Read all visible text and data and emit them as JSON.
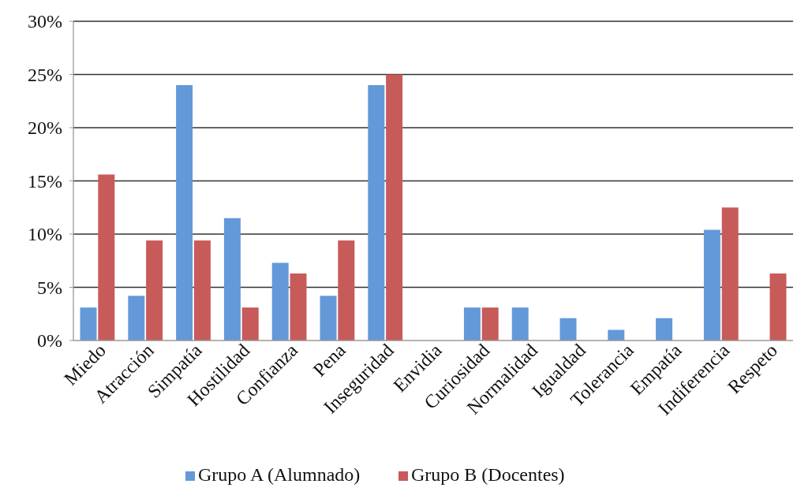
{
  "chart_data": {
    "type": "bar",
    "categories": [
      "Miedo",
      "Atracción",
      "Simpatía",
      "Hostilidad",
      "Confianza",
      "Pena",
      "Inseguridad",
      "Envidia",
      "Curiosidad",
      "Normalidad",
      "Igualdad",
      "Tolerancia",
      "Empatía",
      "Indiferencia",
      "Respeto"
    ],
    "series": [
      {
        "name": "Grupo A (Alumnado)",
        "color": "#6399d8",
        "values": [
          3.1,
          4.2,
          24.0,
          11.5,
          7.3,
          4.2,
          24.0,
          0,
          3.1,
          3.1,
          2.1,
          1.0,
          2.1,
          10.4,
          0
        ]
      },
      {
        "name": "Grupo B (Docentes)",
        "color": "#c75b5a",
        "values": [
          15.6,
          9.4,
          9.4,
          3.1,
          6.3,
          9.4,
          25.0,
          0,
          3.1,
          0,
          0,
          0,
          0,
          12.5,
          6.3
        ]
      }
    ],
    "ylim": [
      0,
      30
    ],
    "yticks": [
      {
        "value": 0,
        "label": "0%"
      },
      {
        "value": 5,
        "label": "5%"
      },
      {
        "value": 10,
        "label": "10%"
      },
      {
        "value": 15,
        "label": "15%"
      },
      {
        "value": 20,
        "label": "20%"
      },
      {
        "value": 25,
        "label": "25%"
      },
      {
        "value": 30,
        "label": "30%"
      }
    ],
    "grid": "y",
    "legend": "bottom"
  }
}
